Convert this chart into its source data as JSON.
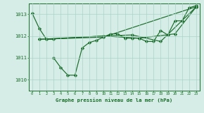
{
  "title": "Graphe pression niveau de la mer (hPa)",
  "background_color": "#d5ede6",
  "grid_color": "#aad4c8",
  "line_color": "#1a6b2a",
  "xlim": [
    -0.5,
    23.5
  ],
  "ylim": [
    1009.5,
    1013.5
  ],
  "yticks": [
    1010,
    1011,
    1012,
    1013
  ],
  "xtick_labels": [
    "0",
    "1",
    "2",
    "3",
    "4",
    "5",
    "6",
    "7",
    "8",
    "9",
    "10",
    "11",
    "12",
    "13",
    "14",
    "15",
    "16",
    "17",
    "18",
    "19",
    "20",
    "21",
    "22",
    "23"
  ],
  "line1_x": [
    0,
    1,
    2,
    3
  ],
  "line1_y": [
    1013.05,
    1012.35,
    1011.85,
    1011.85
  ],
  "line2_x": [
    3,
    4,
    5,
    6,
    7,
    8,
    9,
    10,
    11,
    12,
    13,
    14,
    15,
    16,
    17,
    18,
    19,
    20,
    21,
    22,
    23
  ],
  "line2_y": [
    1011.0,
    1010.55,
    1010.2,
    1010.2,
    1011.45,
    1011.7,
    1011.8,
    1011.95,
    1012.1,
    1012.1,
    1011.9,
    1011.9,
    1011.9,
    1011.75,
    1011.75,
    1012.25,
    1012.05,
    1012.7,
    1012.7,
    1013.3,
    1013.4
  ],
  "line3_x": [
    1,
    10,
    23
  ],
  "line3_y": [
    1011.85,
    1011.95,
    1013.35
  ],
  "line4_x": [
    2,
    10,
    14,
    18,
    23
  ],
  "line4_y": [
    1011.85,
    1012.0,
    1012.05,
    1011.75,
    1013.35
  ],
  "line5_x": [
    1,
    10,
    15,
    20,
    23
  ],
  "line5_y": [
    1011.85,
    1012.0,
    1011.9,
    1012.1,
    1013.35
  ]
}
